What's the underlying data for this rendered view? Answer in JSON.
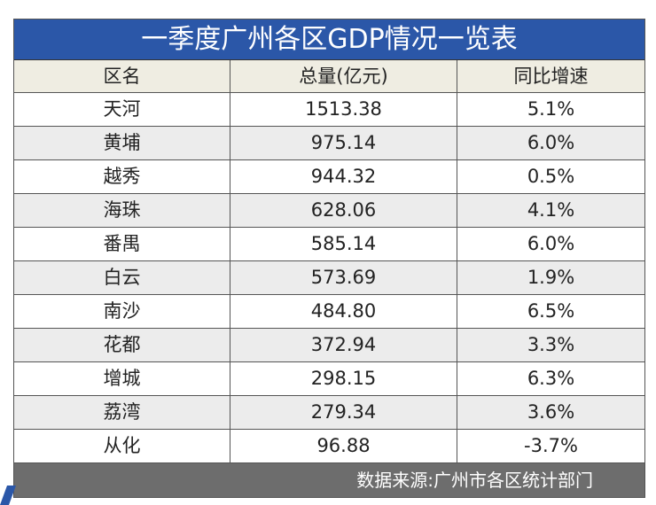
{
  "chart_data": {
    "type": "table",
    "title": "一季度广州各区GDP情况一览表",
    "columns": [
      "区名",
      "总量(亿元)",
      "同比增速"
    ],
    "rows": [
      [
        "天河",
        "1513.38",
        "5.1%"
      ],
      [
        "黄埔",
        "975.14",
        "6.0%"
      ],
      [
        "越秀",
        "944.32",
        "0.5%"
      ],
      [
        "海珠",
        "628.06",
        "4.1%"
      ],
      [
        "番禺",
        "585.14",
        "6.0%"
      ],
      [
        "白云",
        "573.69",
        "1.9%"
      ],
      [
        "南沙",
        "484.80",
        "6.5%"
      ],
      [
        "花都",
        "372.94",
        "3.3%"
      ],
      [
        "增城",
        "298.15",
        "6.3%"
      ],
      [
        "荔湾",
        "279.34",
        "3.6%"
      ],
      [
        "从化",
        "96.88",
        "-3.7%"
      ]
    ],
    "source": "数据来源:广州市各区统计部门"
  },
  "colors": {
    "title_bg": "#2b57a8",
    "header_bg": "#efede2",
    "alt_row": "#ececec",
    "footer_bg": "#6d6d6d"
  }
}
